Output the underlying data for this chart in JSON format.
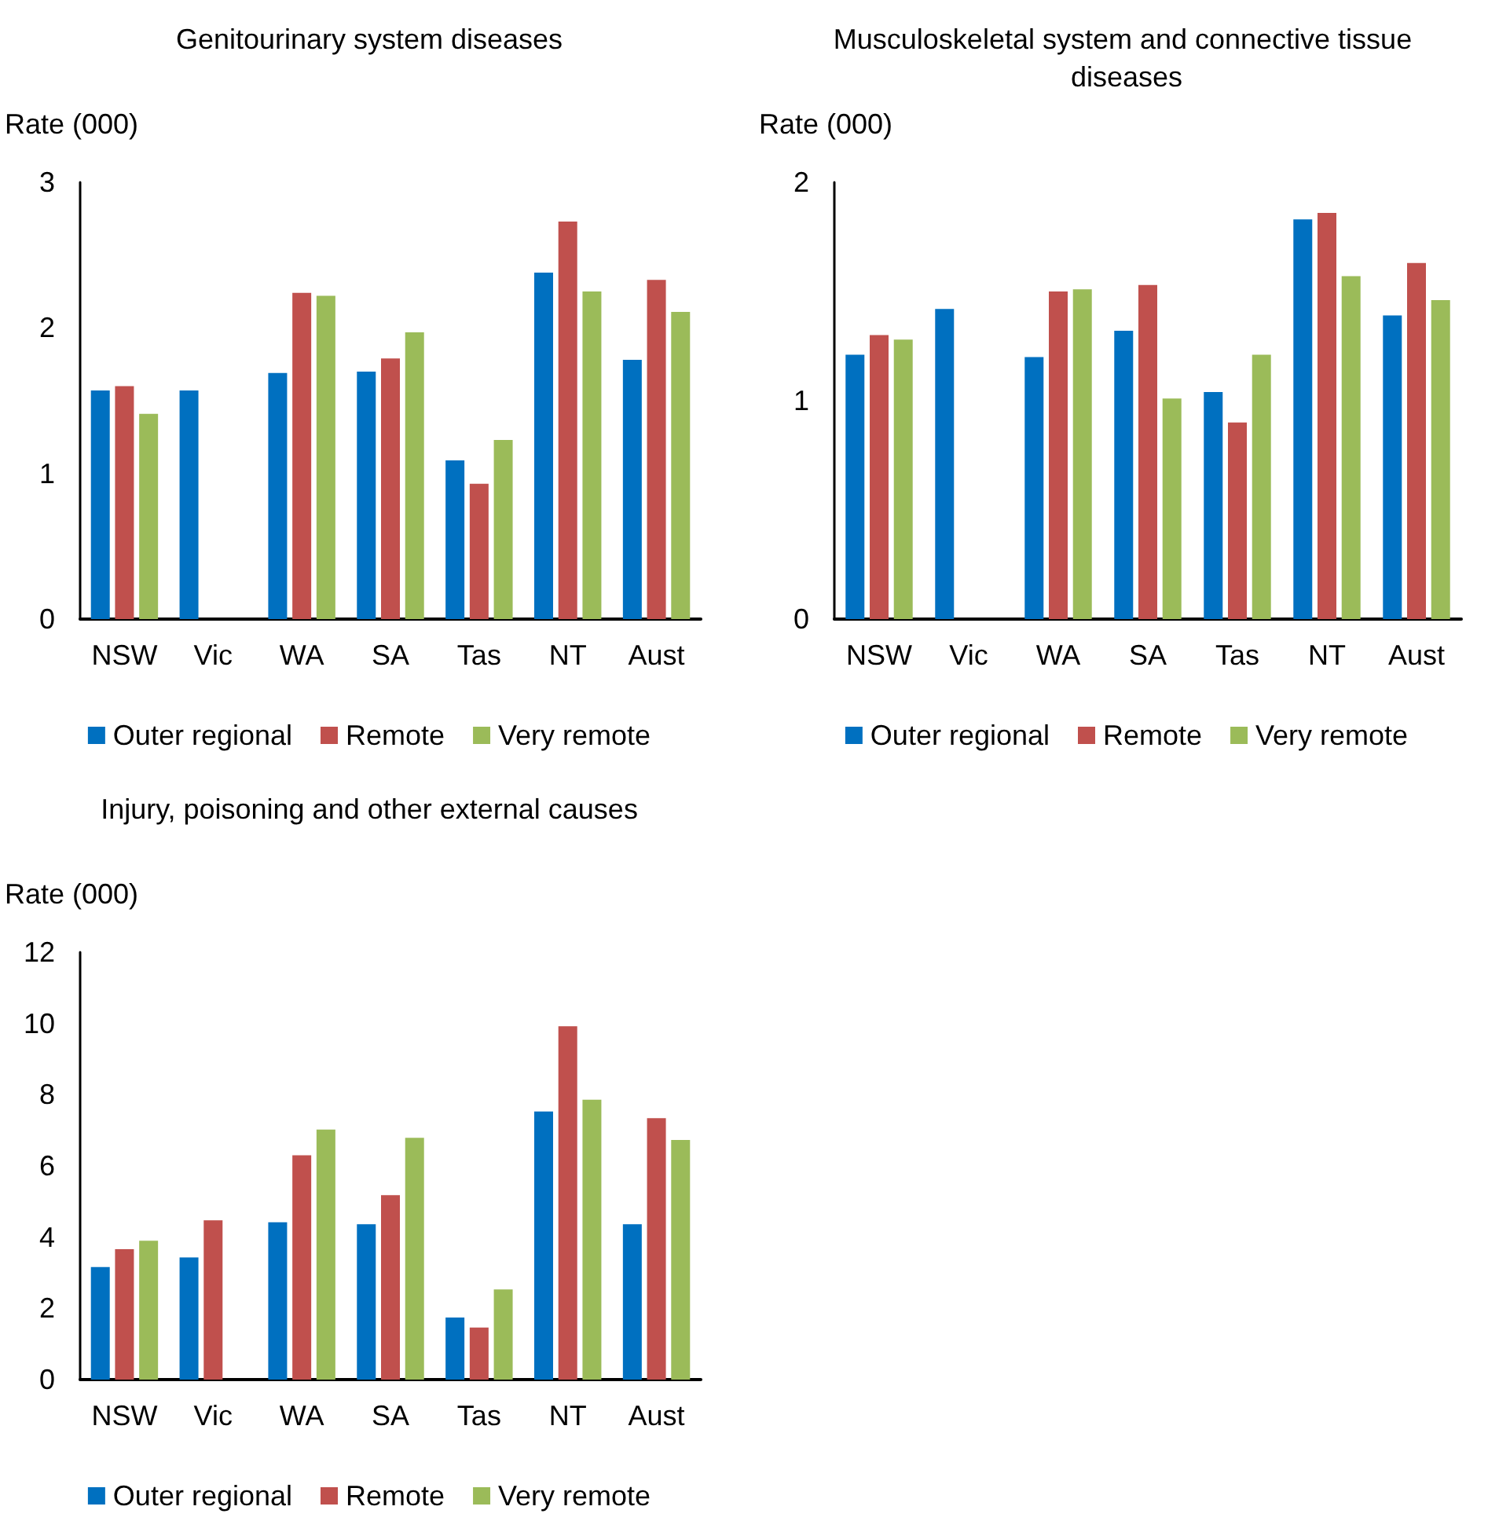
{
  "chart_data": [
    {
      "type": "bar",
      "title": "Genitourinary system diseases",
      "ylabel": "Rate (000)",
      "categories": [
        "NSW",
        "Vic",
        "WA",
        "SA",
        "Tas",
        "NT",
        "Aust"
      ],
      "series": [
        {
          "name": "Outer regional",
          "color": "#0070c0",
          "values": [
            1.57,
            1.57,
            1.69,
            1.7,
            1.09,
            2.38,
            1.78
          ]
        },
        {
          "name": "Remote",
          "color": "#c0504d",
          "values": [
            1.6,
            null,
            2.24,
            1.79,
            0.93,
            2.73,
            2.33
          ]
        },
        {
          "name": "Very remote",
          "color": "#9bbb59",
          "values": [
            1.41,
            null,
            2.22,
            1.97,
            1.23,
            2.25,
            2.11
          ]
        }
      ],
      "ylim": [
        0,
        3
      ],
      "yticks": [
        0,
        1,
        2,
        3
      ],
      "grid": false,
      "legend": "bottom"
    },
    {
      "type": "bar",
      "title": "Musculoskeletal system and connective tissue diseases",
      "ylabel": "Rate (000)",
      "categories": [
        "NSW",
        "Vic",
        "WA",
        "SA",
        "Tas",
        "NT",
        "Aust"
      ],
      "series": [
        {
          "name": "Outer regional",
          "color": "#0070c0",
          "values": [
            1.21,
            1.42,
            1.2,
            1.32,
            1.04,
            1.83,
            1.39
          ]
        },
        {
          "name": "Remote",
          "color": "#c0504d",
          "values": [
            1.3,
            null,
            1.5,
            1.53,
            0.9,
            1.86,
            1.63
          ]
        },
        {
          "name": "Very remote",
          "color": "#9bbb59",
          "values": [
            1.28,
            null,
            1.51,
            1.01,
            1.21,
            1.57,
            1.46
          ]
        }
      ],
      "ylim": [
        0,
        2
      ],
      "yticks": [
        0,
        1,
        2
      ],
      "grid": false,
      "legend": "bottom"
    },
    {
      "type": "bar",
      "title": "Injury, poisoning and other external causes",
      "ylabel": "Rate (000)",
      "categories": [
        "NSW",
        "Vic",
        "WA",
        "SA",
        "Tas",
        "NT",
        "Aust"
      ],
      "series": [
        {
          "name": "Outer regional",
          "color": "#0070c0",
          "values": [
            3.16,
            3.43,
            4.42,
            4.36,
            1.74,
            7.53,
            4.36
          ]
        },
        {
          "name": "Remote",
          "color": "#c0504d",
          "values": [
            3.66,
            4.47,
            6.3,
            5.18,
            1.46,
            9.92,
            7.34
          ]
        },
        {
          "name": "Very remote",
          "color": "#9bbb59",
          "values": [
            3.9,
            null,
            7.02,
            6.79,
            2.53,
            7.86,
            6.73
          ]
        }
      ],
      "ylim": [
        0,
        12
      ],
      "yticks": [
        0,
        2,
        4,
        6,
        8,
        10,
        12
      ],
      "grid": false,
      "legend": "bottom"
    }
  ]
}
